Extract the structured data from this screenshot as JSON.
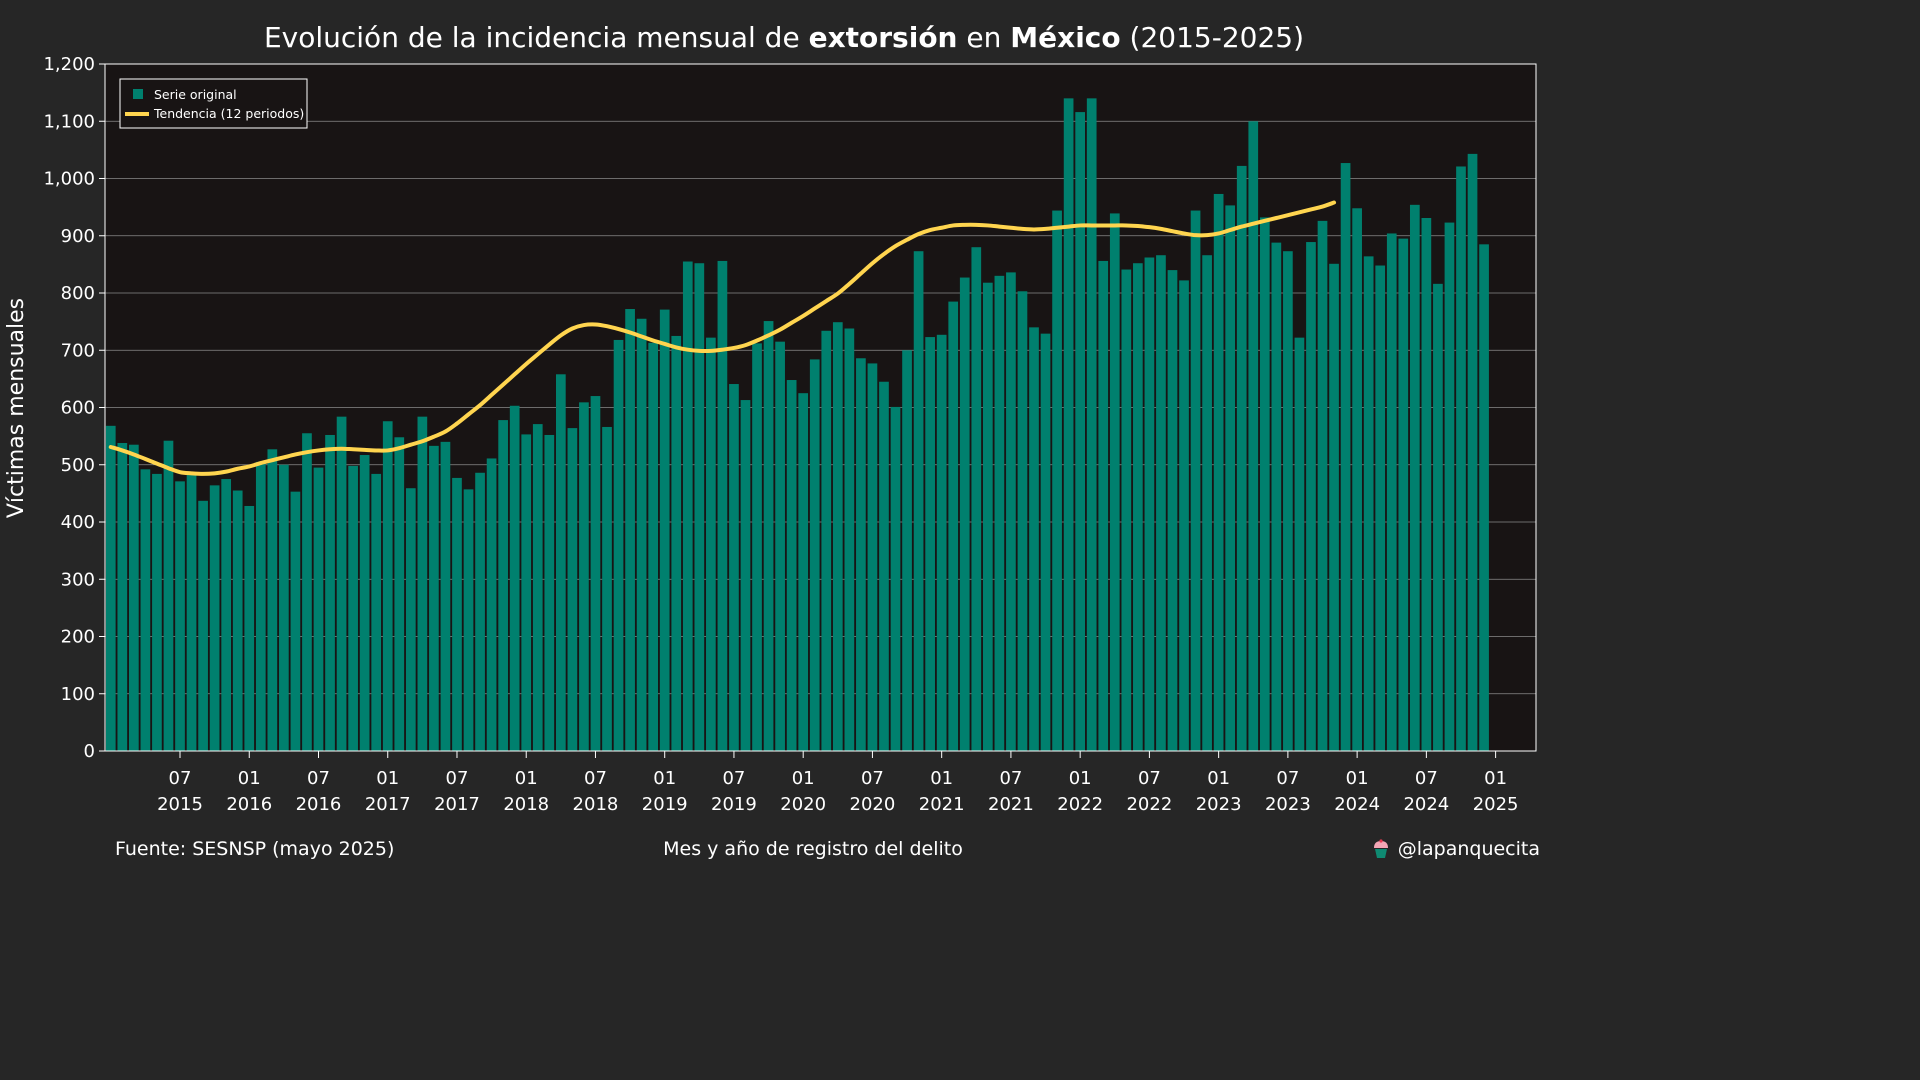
{
  "title": {
    "part1": "Evolución de la incidencia mensual de ",
    "bold1": "extorsión",
    "part2": " en ",
    "bold2": "México",
    "part3": " (2015-2025)"
  },
  "footer": {
    "source": "Fuente: SESNSP (mayo 2025)",
    "xlabel": "Mes y año de registro del delito",
    "credit": "@lapanquecita"
  },
  "colors": {
    "background": "#262626",
    "plot_background": "#181414",
    "bars": "#00806e",
    "trend": "#ffd54f",
    "grid": "#8a8a8a"
  },
  "chart_data": {
    "type": "bar",
    "ylabel": "Víctimas mensuales",
    "xlabel": "Mes y año de registro del delito",
    "ylim": [
      0,
      1200
    ],
    "yticks": [
      0,
      100,
      200,
      300,
      400,
      500,
      600,
      700,
      800,
      900,
      1000,
      1100,
      1200
    ],
    "ytick_labels": [
      "0",
      "100",
      "200",
      "300",
      "400",
      "500",
      "600",
      "700",
      "800",
      "900",
      "1,000",
      "1,100",
      "1,200"
    ],
    "grid": true,
    "legend": {
      "placement": "top-left",
      "entries": [
        "Serie original",
        "Tendencia (12 periodos)"
      ]
    },
    "x_start": "2015-01",
    "x_end": "2025-04",
    "xticks": [
      {
        "date": "2015-07",
        "month": "07",
        "year": "2015"
      },
      {
        "date": "2016-01",
        "month": "01",
        "year": "2016"
      },
      {
        "date": "2016-07",
        "month": "07",
        "year": "2016"
      },
      {
        "date": "2017-01",
        "month": "01",
        "year": "2017"
      },
      {
        "date": "2017-07",
        "month": "07",
        "year": "2017"
      },
      {
        "date": "2018-01",
        "month": "01",
        "year": "2018"
      },
      {
        "date": "2018-07",
        "month": "07",
        "year": "2018"
      },
      {
        "date": "2019-01",
        "month": "01",
        "year": "2019"
      },
      {
        "date": "2019-07",
        "month": "07",
        "year": "2019"
      },
      {
        "date": "2020-01",
        "month": "01",
        "year": "2020"
      },
      {
        "date": "2020-07",
        "month": "07",
        "year": "2020"
      },
      {
        "date": "2021-01",
        "month": "01",
        "year": "2021"
      },
      {
        "date": "2021-07",
        "month": "07",
        "year": "2021"
      },
      {
        "date": "2022-01",
        "month": "01",
        "year": "2022"
      },
      {
        "date": "2022-07",
        "month": "07",
        "year": "2022"
      },
      {
        "date": "2023-01",
        "month": "01",
        "year": "2023"
      },
      {
        "date": "2023-07",
        "month": "07",
        "year": "2023"
      },
      {
        "date": "2024-01",
        "month": "01",
        "year": "2024"
      },
      {
        "date": "2024-07",
        "month": "07",
        "year": "2024"
      },
      {
        "date": "2025-01",
        "month": "01",
        "year": "2025"
      }
    ],
    "series": [
      {
        "name": "Serie original",
        "type": "bar",
        "values": [
          568,
          538,
          535,
          492,
          484,
          542,
          471,
          482,
          437,
          464,
          475,
          455,
          428,
          505,
          527,
          500,
          453,
          555,
          495,
          552,
          584,
          498,
          517,
          484,
          576,
          548,
          459,
          584,
          533,
          540,
          477,
          457,
          486,
          511,
          578,
          603,
          553,
          571,
          552,
          658,
          564,
          609,
          620,
          566,
          718,
          772,
          755,
          713,
          771,
          725,
          855,
          852,
          722,
          856,
          641,
          613,
          712,
          751,
          715,
          648,
          625,
          684,
          734,
          749,
          738,
          686,
          677,
          645,
          601,
          700,
          873,
          723,
          727,
          785,
          827,
          880,
          818,
          830,
          836,
          803,
          740,
          729,
          944,
          1140,
          1116,
          1140,
          856,
          939,
          841,
          852,
          862,
          866,
          840,
          822,
          944,
          866,
          973,
          953,
          1022,
          1100,
          932,
          888,
          873,
          722,
          889,
          926,
          851,
          1027,
          948,
          864,
          848,
          904,
          895,
          954,
          931,
          816,
          923,
          1021,
          1043,
          885
        ]
      },
      {
        "name": "Tendencia (12 periodos)",
        "type": "line",
        "start": "2015-01",
        "values": [
          531,
          525,
          518,
          510,
          502,
          494,
          487,
          485,
          484,
          485,
          488,
          493,
          497,
          503,
          508,
          513,
          518,
          522,
          525,
          527,
          528,
          527,
          526,
          525,
          525,
          529,
          535,
          541,
          549,
          558,
          572,
          588,
          604,
          622,
          640,
          658,
          676,
          693,
          710,
          726,
          738,
          744,
          745,
          742,
          737,
          731,
          724,
          717,
          711,
          705,
          701,
          699,
          699,
          701,
          704,
          709,
          717,
          726,
          736,
          748,
          760,
          773,
          786,
          799,
          816,
          834,
          852,
          868,
          882,
          893,
          903,
          910,
          914,
          918,
          919,
          919,
          918,
          916,
          914,
          912,
          911,
          912,
          914,
          916,
          918,
          918,
          918,
          918,
          918,
          917,
          915,
          912,
          908,
          904,
          901,
          901,
          904,
          910,
          916,
          921,
          926,
          931,
          936,
          941,
          946,
          951,
          958
        ]
      }
    ]
  }
}
